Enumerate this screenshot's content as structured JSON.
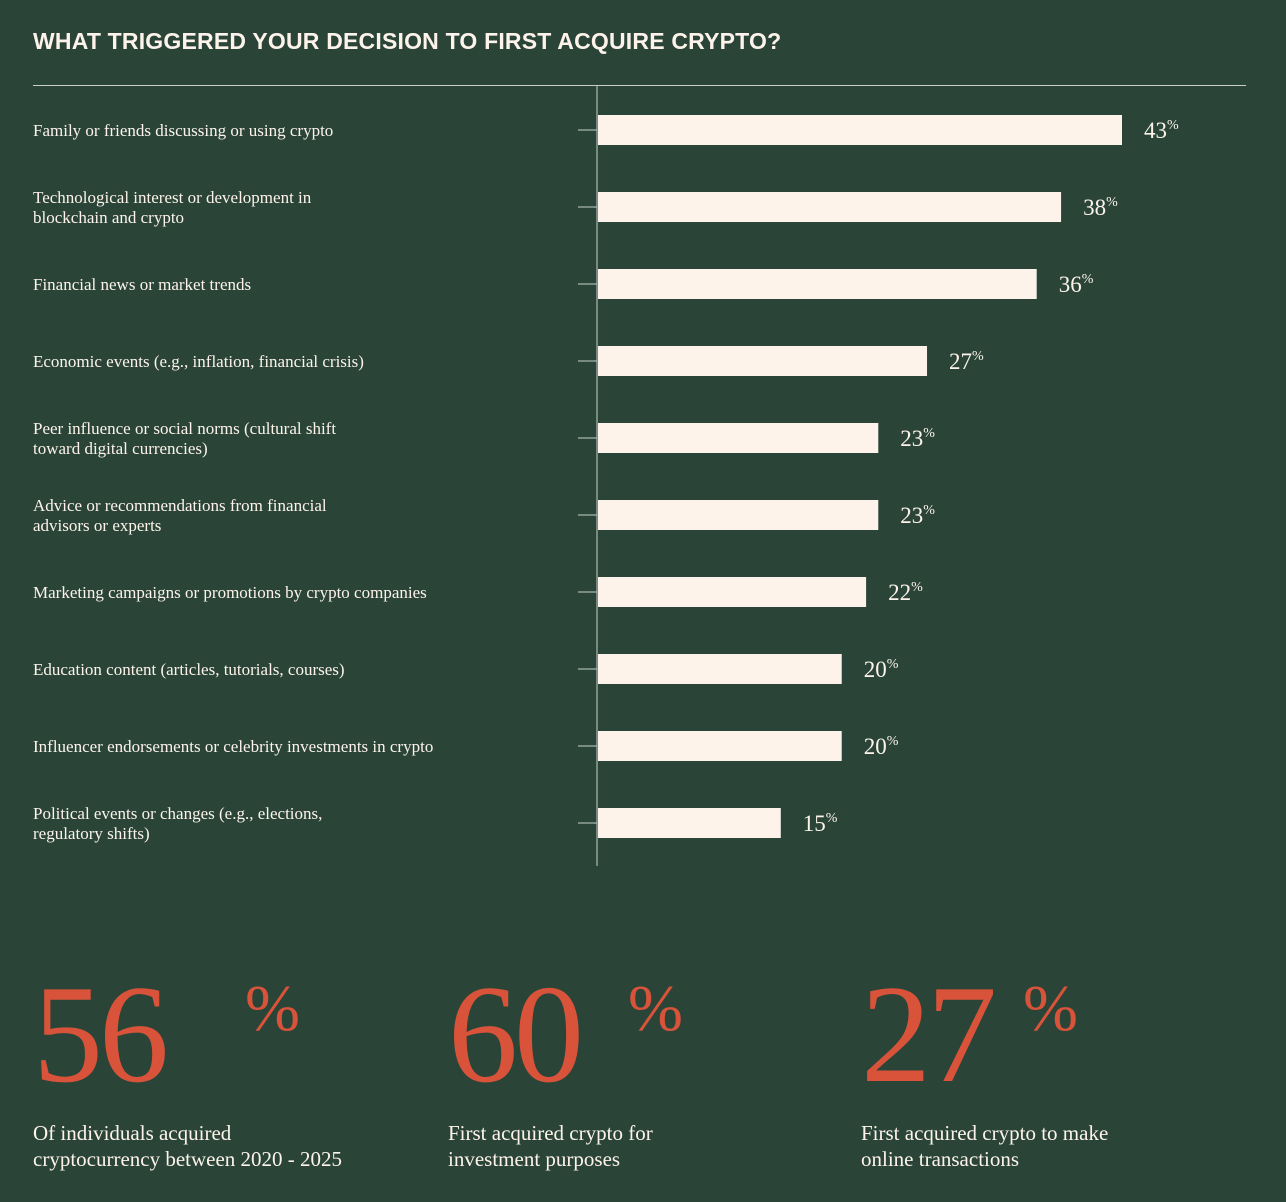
{
  "chart_data": {
    "type": "bar",
    "orientation": "horizontal",
    "title": "WHAT TRIGGERED YOUR DECISION TO FIRST ACQUIRE CRYPTO?",
    "categories": [
      [
        "Family or friends discussing or using crypto"
      ],
      [
        "Technological interest or development in",
        "blockchain and crypto"
      ],
      [
        "Financial news or market trends"
      ],
      [
        "Economic events (e.g., inflation, financial crisis)"
      ],
      [
        "Peer influence or social norms (cultural shift",
        "toward digital currencies)"
      ],
      [
        "Advice or recommendations from financial",
        "advisors or experts"
      ],
      [
        "Marketing campaigns or promotions by crypto companies"
      ],
      [
        "Education content (articles, tutorials, courses)"
      ],
      [
        "Influencer endorsements or celebrity investments in crypto"
      ],
      [
        "Political events or changes (e.g., elections,",
        "regulatory shifts)"
      ]
    ],
    "values": [
      43,
      38,
      36,
      27,
      23,
      23,
      22,
      20,
      20,
      15
    ],
    "value_suffix": "%",
    "xlim": [
      0,
      43
    ],
    "grid": false,
    "legend": "none",
    "colors": {
      "bar": "#fdf3ea",
      "background": "#2a4538",
      "text": "#fdf3ea",
      "axis": "#c8cfc9"
    }
  },
  "stats": [
    {
      "value": "56",
      "symbol": "%",
      "caption": "Of individuals acquired\ncryptocurrency between 2020 - 2025"
    },
    {
      "value": "60",
      "symbol": "%",
      "caption": "First acquired crypto for\ninvestment purposes"
    },
    {
      "value": "27",
      "symbol": "%",
      "caption": "First acquired crypto to make\nonline transactions"
    }
  ],
  "colors": {
    "background": "#2a4538",
    "accent": "#d9533a",
    "text": "#fdf3ea"
  }
}
